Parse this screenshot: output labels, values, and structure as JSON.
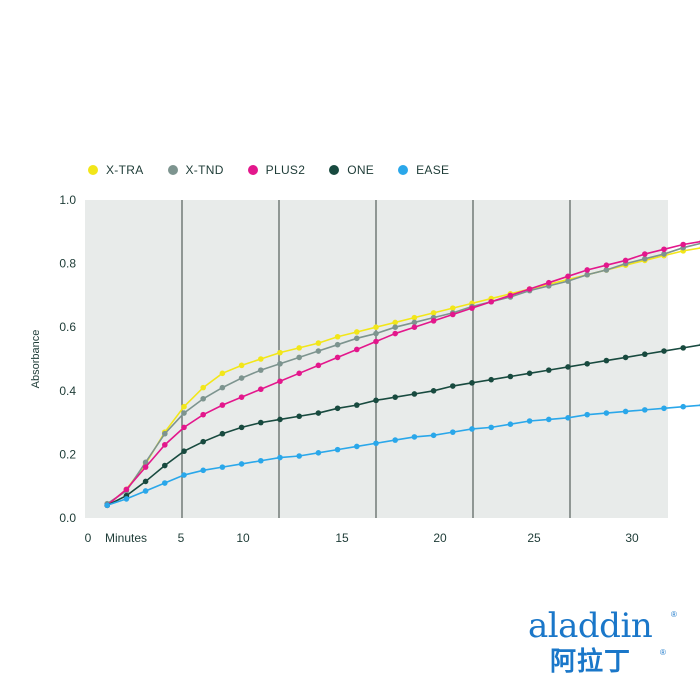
{
  "chart_data": {
    "type": "line",
    "xlabel": "Minutes",
    "ylabel": "Absorbance",
    "xlim": [
      0,
      32
    ],
    "ylim": [
      0,
      1.0
    ],
    "x_ticks": [
      "0",
      "5",
      "10",
      "15",
      "20",
      "25",
      "30"
    ],
    "y_ticks": [
      "0.0",
      "0.2",
      "0.4",
      "0.6",
      "0.8",
      "1.0"
    ],
    "grid": "vertical",
    "legend_position": "top-left",
    "x": [
      1,
      2,
      3,
      4,
      5,
      6,
      7,
      8,
      9,
      10,
      11,
      12,
      13,
      14,
      15,
      16,
      17,
      18,
      19,
      20,
      21,
      22,
      23,
      24,
      25,
      26,
      27,
      28,
      29,
      30,
      31,
      32
    ],
    "series": [
      {
        "name": "X-TRA",
        "color": "#f2e619",
        "values": [
          0.04,
          0.09,
          0.17,
          0.27,
          0.35,
          0.41,
          0.455,
          0.48,
          0.5,
          0.52,
          0.535,
          0.55,
          0.57,
          0.585,
          0.6,
          0.615,
          0.63,
          0.645,
          0.66,
          0.675,
          0.69,
          0.705,
          0.72,
          0.735,
          0.75,
          0.765,
          0.78,
          0.795,
          0.81,
          0.825,
          0.84,
          0.85
        ]
      },
      {
        "name": "X-TND",
        "color": "#7d948f",
        "values": [
          0.045,
          0.085,
          0.175,
          0.265,
          0.33,
          0.375,
          0.41,
          0.44,
          0.465,
          0.485,
          0.505,
          0.525,
          0.545,
          0.565,
          0.58,
          0.6,
          0.615,
          0.63,
          0.645,
          0.665,
          0.68,
          0.695,
          0.715,
          0.73,
          0.745,
          0.765,
          0.78,
          0.8,
          0.815,
          0.83,
          0.85,
          0.865
        ]
      },
      {
        "name": "PLUS2",
        "color": "#e3178c",
        "values": [
          0.04,
          0.09,
          0.16,
          0.23,
          0.285,
          0.325,
          0.355,
          0.38,
          0.405,
          0.43,
          0.455,
          0.48,
          0.505,
          0.53,
          0.555,
          0.58,
          0.6,
          0.62,
          0.64,
          0.66,
          0.68,
          0.7,
          0.72,
          0.74,
          0.76,
          0.78,
          0.795,
          0.81,
          0.83,
          0.845,
          0.86,
          0.87
        ]
      },
      {
        "name": "ONE",
        "color": "#184a3f",
        "values": [
          0.04,
          0.07,
          0.115,
          0.165,
          0.21,
          0.24,
          0.265,
          0.285,
          0.3,
          0.31,
          0.32,
          0.33,
          0.345,
          0.355,
          0.37,
          0.38,
          0.39,
          0.4,
          0.415,
          0.425,
          0.435,
          0.445,
          0.455,
          0.465,
          0.475,
          0.485,
          0.495,
          0.505,
          0.515,
          0.525,
          0.535,
          0.545
        ]
      },
      {
        "name": "EASE",
        "color": "#2aa7ea",
        "values": [
          0.04,
          0.06,
          0.085,
          0.11,
          0.135,
          0.15,
          0.16,
          0.17,
          0.18,
          0.19,
          0.195,
          0.205,
          0.215,
          0.225,
          0.235,
          0.245,
          0.255,
          0.26,
          0.27,
          0.28,
          0.285,
          0.295,
          0.305,
          0.31,
          0.315,
          0.325,
          0.33,
          0.335,
          0.34,
          0.345,
          0.35,
          0.355
        ]
      }
    ]
  },
  "logo": {
    "latin": "aladdin",
    "cjk": "阿拉丁",
    "reg": "®"
  }
}
